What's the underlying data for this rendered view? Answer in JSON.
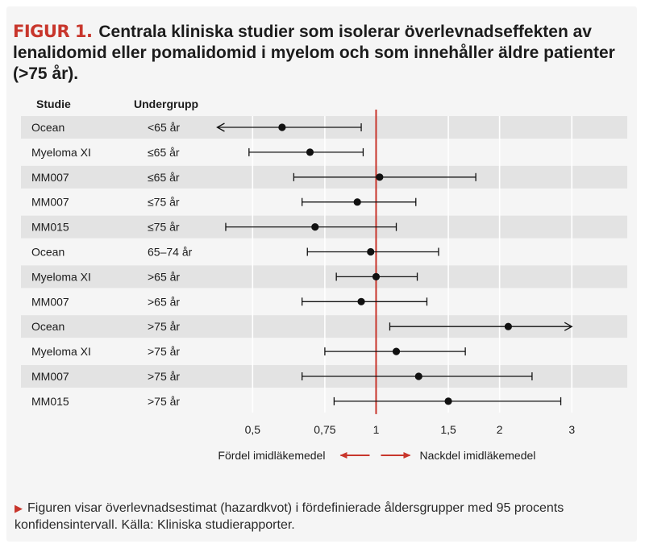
{
  "figure": {
    "label": "FIGUR 1.",
    "title": "Centrala kliniska studier som isolerar överlevnadseffekten av lenalidomid eller pomalidomid i myelom och som innehåller äldre patienter (>75 år).",
    "caption": "Figuren visar överlevnadsestimat (hazardkvot) i fördefinierade åldersgrupper med 95 procents konfidensintervall. Källa: Kliniska studierapporter.",
    "caption_marker": "▶"
  },
  "colors": {
    "accent": "#c8362c",
    "row_shade": "#e3e3e3",
    "marker": "#111111"
  },
  "chart_data": {
    "type": "forest",
    "scale": "log",
    "xlim": [
      0.4,
      3.15
    ],
    "reference_line": 1,
    "column_headers": {
      "study": "Studie",
      "subgroup": "Undergrupp"
    },
    "ticks": [
      {
        "value": 0.5,
        "label": "0,5"
      },
      {
        "value": 0.75,
        "label": "0,75"
      },
      {
        "value": 1,
        "label": "1"
      },
      {
        "value": 1.5,
        "label": "1,5"
      },
      {
        "value": 2,
        "label": "2"
      },
      {
        "value": 3,
        "label": "3"
      }
    ],
    "left_annotation": "Fördel imidläkemedel",
    "right_annotation": "Nackdel imidläkemedel",
    "rows": [
      {
        "study": "Ocean",
        "subgroup": "<65 år",
        "hr": 0.59,
        "lo": 0.41,
        "hi": 0.92,
        "lo_arrow": true,
        "hi_arrow": false
      },
      {
        "study": "Myeloma XI",
        "subgroup": "≤65 år",
        "hr": 0.69,
        "lo": 0.49,
        "hi": 0.93,
        "lo_arrow": false,
        "hi_arrow": false
      },
      {
        "study": "MM007",
        "subgroup": "≤65 år",
        "hr": 1.02,
        "lo": 0.63,
        "hi": 1.75,
        "lo_arrow": false,
        "hi_arrow": false
      },
      {
        "study": "MM007",
        "subgroup": "≤75 år",
        "hr": 0.9,
        "lo": 0.66,
        "hi": 1.25,
        "lo_arrow": false,
        "hi_arrow": false
      },
      {
        "study": "MM015",
        "subgroup": "≤75 år",
        "hr": 0.71,
        "lo": 0.43,
        "hi": 1.12,
        "lo_arrow": false,
        "hi_arrow": false
      },
      {
        "study": "Ocean",
        "subgroup": "65–74 år",
        "hr": 0.97,
        "lo": 0.68,
        "hi": 1.42,
        "lo_arrow": false,
        "hi_arrow": false
      },
      {
        "study": "Myeloma XI",
        "subgroup": ">65 år",
        "hr": 1.0,
        "lo": 0.8,
        "hi": 1.26,
        "lo_arrow": false,
        "hi_arrow": false
      },
      {
        "study": "MM007",
        "subgroup": ">65 år",
        "hr": 0.92,
        "lo": 0.66,
        "hi": 1.33,
        "lo_arrow": false,
        "hi_arrow": false
      },
      {
        "study": "Ocean",
        "subgroup": ">75 år",
        "hr": 2.1,
        "lo": 1.08,
        "hi": 3.0,
        "lo_arrow": false,
        "hi_arrow": true
      },
      {
        "study": "Myeloma XI",
        "subgroup": ">75 år",
        "hr": 1.12,
        "lo": 0.75,
        "hi": 1.65,
        "lo_arrow": false,
        "hi_arrow": false
      },
      {
        "study": "MM007",
        "subgroup": ">75 år",
        "hr": 1.27,
        "lo": 0.66,
        "hi": 2.4,
        "lo_arrow": false,
        "hi_arrow": false
      },
      {
        "study": "MM015",
        "subgroup": ">75 år",
        "hr": 1.5,
        "lo": 0.79,
        "hi": 2.82,
        "lo_arrow": false,
        "hi_arrow": false
      }
    ]
  }
}
